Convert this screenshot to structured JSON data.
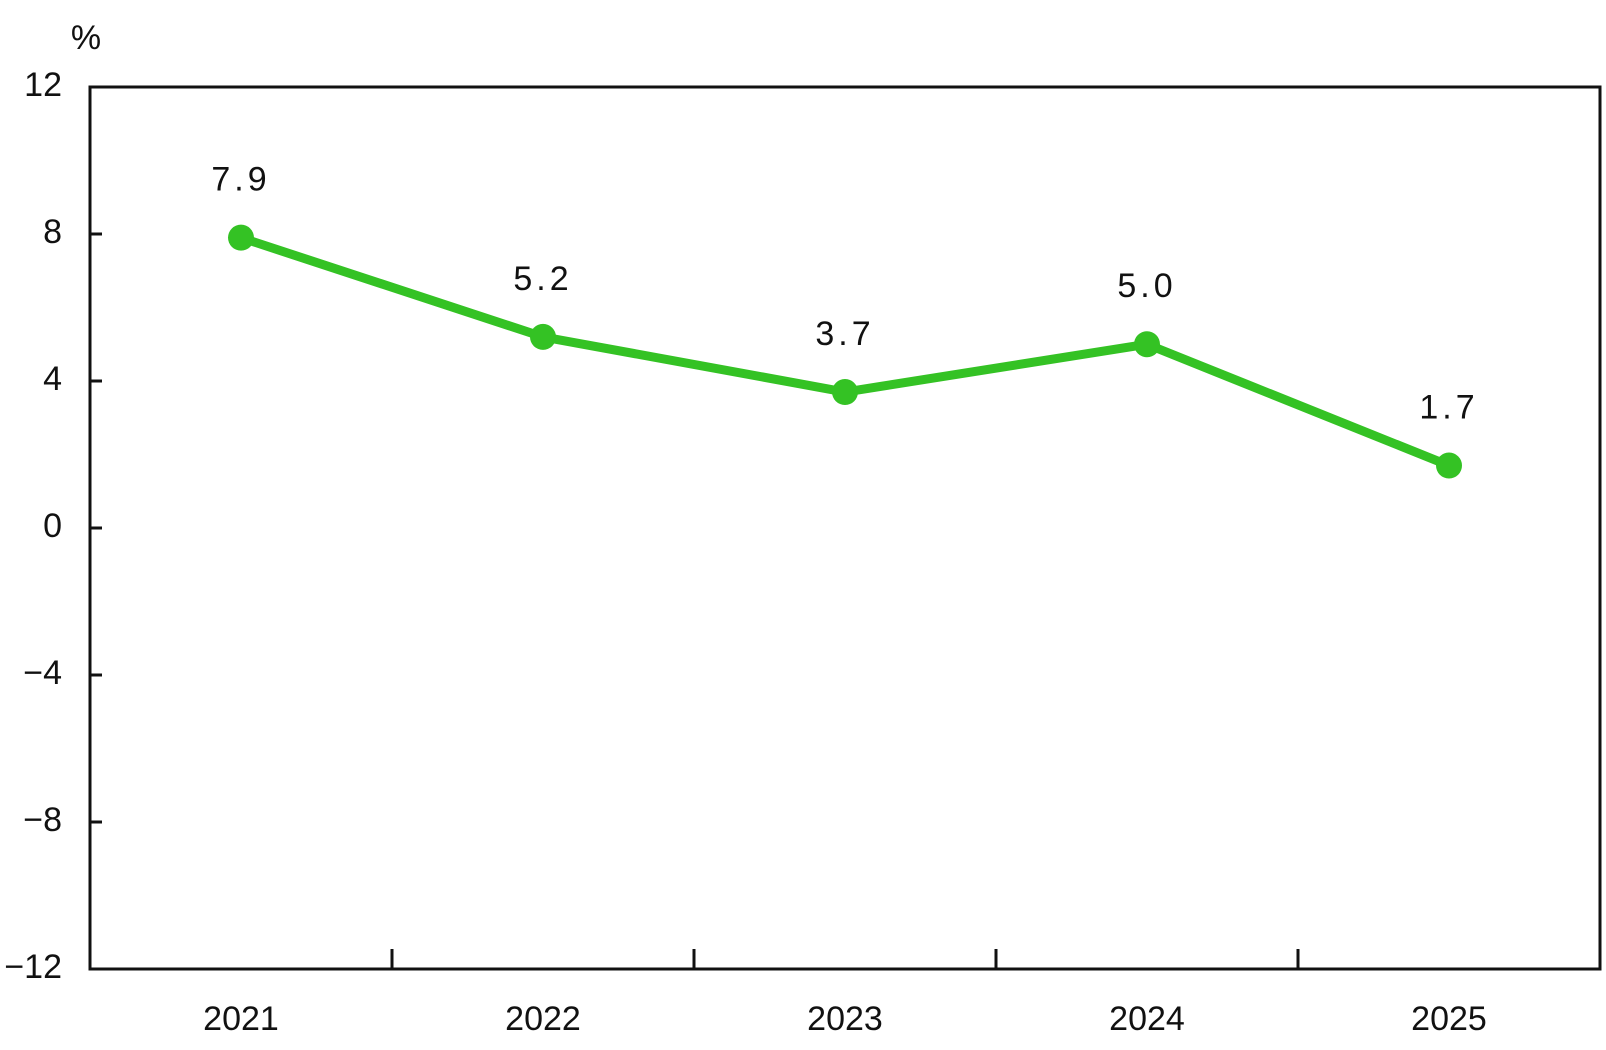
{
  "chart_data": {
    "type": "line",
    "y_label": "%",
    "categories": [
      "2021",
      "2022",
      "2023",
      "2024",
      "2025"
    ],
    "series": [
      {
        "color": "#34c224",
        "values": [
          7.9,
          5.2,
          3.7,
          5.0,
          1.7
        ],
        "value_labels": [
          "7.9",
          "5.2",
          "3.7",
          "5.0",
          "1.7"
        ]
      }
    ],
    "ylim": [
      -12,
      12
    ],
    "yticks": [
      {
        "value": -12,
        "label": "−12"
      },
      {
        "value": -8,
        "label": "−8"
      },
      {
        "value": -4,
        "label": "−4"
      },
      0,
      4,
      8,
      12
    ],
    "grid": false
  }
}
